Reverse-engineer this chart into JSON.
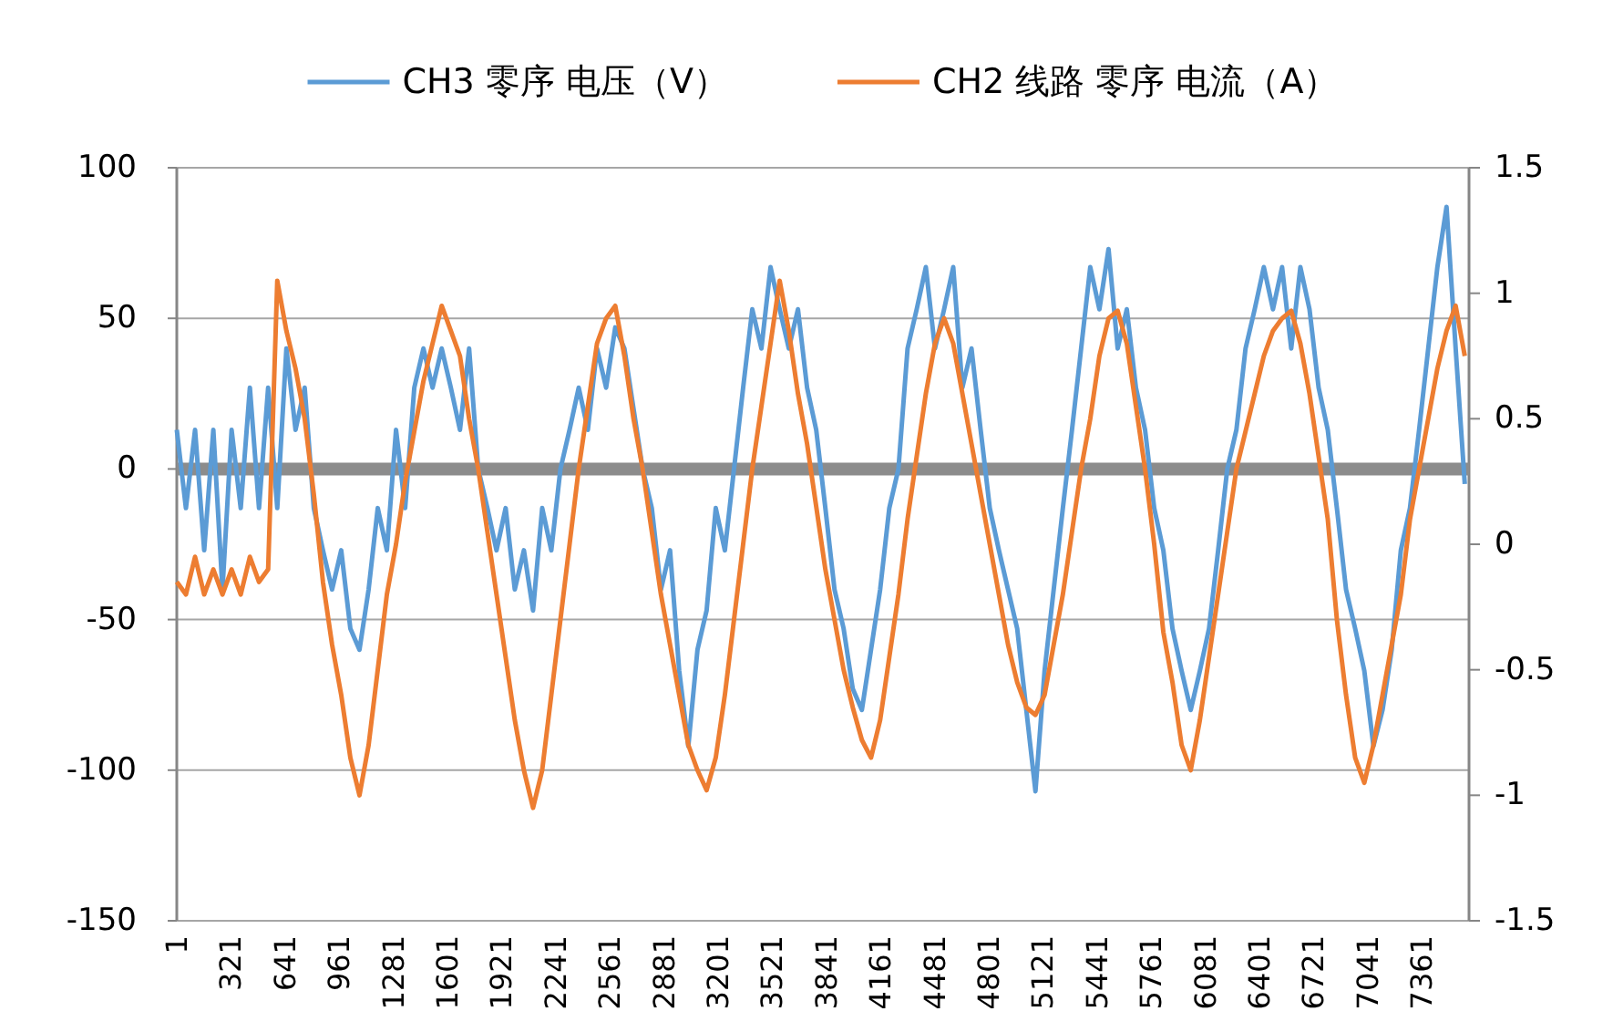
{
  "chart_data": {
    "type": "line",
    "legend": "top",
    "grid": "y",
    "xlim": [
      1,
      7640
    ],
    "xticks": [
      1,
      321,
      641,
      961,
      1281,
      1601,
      1921,
      2241,
      2561,
      2881,
      3201,
      3521,
      3841,
      4161,
      4481,
      4801,
      5121,
      5441,
      5761,
      6081,
      6401,
      6721,
      7041,
      7361
    ],
    "ylim": [
      -150,
      100
    ],
    "yticks": [
      -150,
      -100,
      -50,
      0,
      50,
      100
    ],
    "y2lim": [
      -1.5,
      1.5
    ],
    "y2ticks": [
      -1.5,
      -1,
      -0.5,
      0,
      0.5,
      1,
      1.5
    ],
    "x": [
      1,
      55,
      109,
      163,
      217,
      271,
      325,
      379,
      433,
      487,
      541,
      595,
      649,
      703,
      757,
      811,
      865,
      919,
      973,
      1027,
      1081,
      1135,
      1189,
      1243,
      1297,
      1351,
      1405,
      1459,
      1513,
      1567,
      1621,
      1675,
      1729,
      1783,
      1837,
      1891,
      1945,
      1999,
      2053,
      2107,
      2161,
      2215,
      2269,
      2323,
      2377,
      2431,
      2485,
      2539,
      2593,
      2647,
      2701,
      2755,
      2809,
      2863,
      2917,
      2971,
      3025,
      3079,
      3133,
      3187,
      3241,
      3295,
      3349,
      3403,
      3457,
      3511,
      3565,
      3619,
      3673,
      3727,
      3781,
      3835,
      3889,
      3943,
      3997,
      4051,
      4105,
      4159,
      4213,
      4267,
      4321,
      4375,
      4429,
      4483,
      4537,
      4591,
      4645,
      4699,
      4753,
      4807,
      4861,
      4915,
      4969,
      5023,
      5077,
      5131,
      5185,
      5239,
      5293,
      5347,
      5401,
      5455,
      5509,
      5563,
      5617,
      5671,
      5725,
      5779,
      5833,
      5887,
      5941,
      5995,
      6049,
      6103,
      6157,
      6211,
      6265,
      6319,
      6373,
      6427,
      6481,
      6535,
      6589,
      6643,
      6697,
      6751,
      6805,
      6859,
      6913,
      6967,
      7021,
      7075,
      7129,
      7183,
      7237,
      7291,
      7345,
      7399,
      7453,
      7507,
      7561,
      7615
    ],
    "series": [
      {
        "name": "CH3 零序 电压（V）",
        "color": "#5b9bd5",
        "values": [
          13,
          -13,
          13,
          -27,
          13,
          -40,
          13,
          -13,
          27,
          -13,
          27,
          -13,
          40,
          13,
          27,
          -13,
          -27,
          -40,
          -27,
          -53,
          -60,
          -40,
          -13,
          -27,
          13,
          -13,
          27,
          40,
          27,
          40,
          27,
          13,
          40,
          0,
          -13,
          -27,
          -13,
          -40,
          -27,
          -47,
          -13,
          -27,
          0,
          13,
          27,
          13,
          40,
          27,
          47,
          40,
          20,
          0,
          -13,
          -40,
          -27,
          -67,
          -92,
          -60,
          -47,
          -13,
          -27,
          0,
          27,
          53,
          40,
          67,
          53,
          40,
          53,
          27,
          13,
          -13,
          -40,
          -53,
          -73,
          -80,
          -60,
          -40,
          -13,
          0,
          40,
          53,
          67,
          40,
          53,
          67,
          27,
          40,
          13,
          -13,
          -27,
          -40,
          -53,
          -80,
          -107,
          -67,
          -40,
          -13,
          13,
          40,
          67,
          53,
          73,
          40,
          53,
          27,
          13,
          -13,
          -27,
          -53,
          -67,
          -80,
          -67,
          -53,
          -27,
          0,
          13,
          40,
          53,
          67,
          53,
          67,
          40,
          67,
          53,
          27,
          13,
          -13,
          -40,
          -53,
          -67,
          -92,
          -80,
          -60,
          -27,
          -13,
          13,
          40,
          67,
          87,
          40,
          -5
        ]
      },
      {
        "name": "CH2 线路 零序 电流（A）",
        "color": "#ed7d31",
        "axis": "y2",
        "values": [
          -0.15,
          -0.2,
          -0.05,
          -0.2,
          -0.1,
          -0.2,
          -0.1,
          -0.2,
          -0.05,
          -0.15,
          -0.1,
          1.05,
          0.85,
          0.7,
          0.5,
          0.2,
          -0.15,
          -0.4,
          -0.6,
          -0.85,
          -1.0,
          -0.8,
          -0.5,
          -0.2,
          0.0,
          0.25,
          0.45,
          0.65,
          0.8,
          0.95,
          0.85,
          0.75,
          0.5,
          0.3,
          0.05,
          -0.2,
          -0.45,
          -0.7,
          -0.9,
          -1.05,
          -0.9,
          -0.6,
          -0.3,
          0.0,
          0.3,
          0.55,
          0.8,
          0.9,
          0.95,
          0.75,
          0.5,
          0.3,
          0.05,
          -0.2,
          -0.4,
          -0.6,
          -0.8,
          -0.9,
          -0.98,
          -0.85,
          -0.6,
          -0.3,
          0.0,
          0.3,
          0.55,
          0.8,
          1.05,
          0.85,
          0.6,
          0.4,
          0.15,
          -0.1,
          -0.3,
          -0.5,
          -0.65,
          -0.78,
          -0.85,
          -0.7,
          -0.45,
          -0.2,
          0.1,
          0.35,
          0.6,
          0.8,
          0.9,
          0.8,
          0.6,
          0.4,
          0.2,
          0.0,
          -0.2,
          -0.4,
          -0.55,
          -0.65,
          -0.68,
          -0.6,
          -0.4,
          -0.2,
          0.05,
          0.3,
          0.5,
          0.75,
          0.9,
          0.93,
          0.8,
          0.55,
          0.3,
          0.0,
          -0.35,
          -0.55,
          -0.8,
          -0.9,
          -0.7,
          -0.45,
          -0.2,
          0.05,
          0.3,
          0.45,
          0.6,
          0.75,
          0.85,
          0.9,
          0.93,
          0.8,
          0.6,
          0.35,
          0.1,
          -0.3,
          -0.6,
          -0.85,
          -0.95,
          -0.8,
          -0.6,
          -0.4,
          -0.2,
          0.1,
          0.3,
          0.5,
          0.7,
          0.85,
          0.95,
          0.75
        ]
      }
    ]
  }
}
